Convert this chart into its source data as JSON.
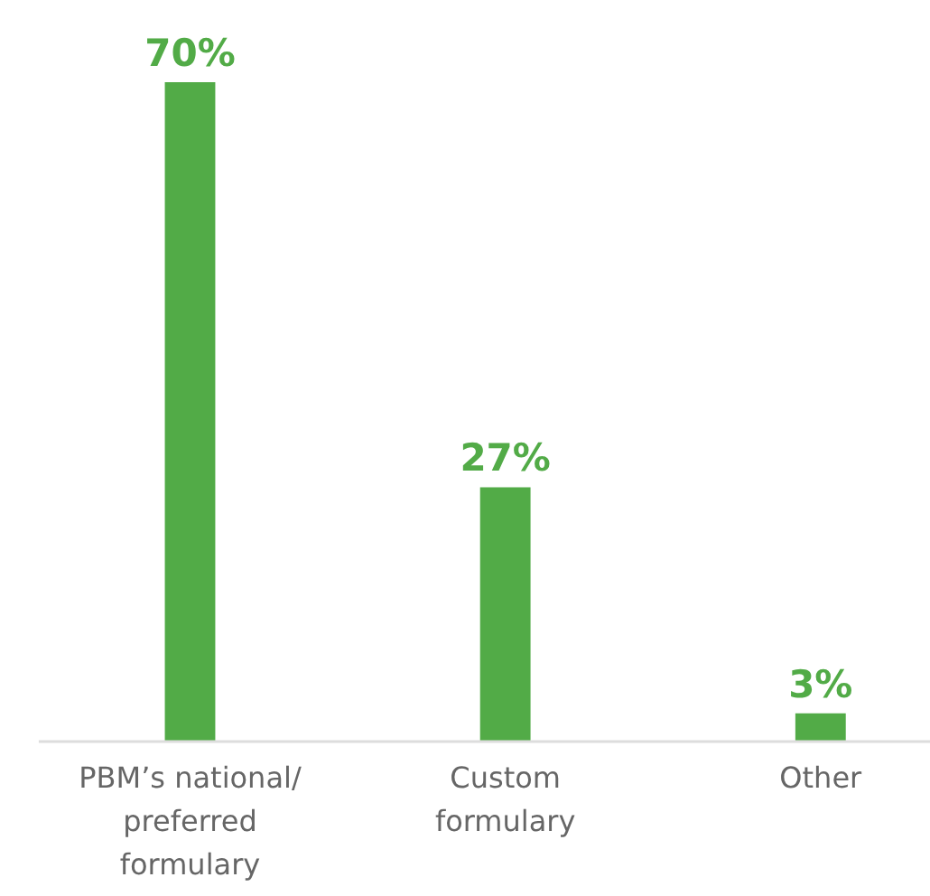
{
  "chart_data": {
    "type": "bar",
    "categories": [
      "PBM’s national/ preferred formulary",
      "Custom formulary",
      "Other"
    ],
    "values": [
      70,
      27,
      3
    ],
    "color": "#52ab47",
    "data_labels": true,
    "value_labels": [
      "70%",
      "27%",
      "3%"
    ]
  }
}
